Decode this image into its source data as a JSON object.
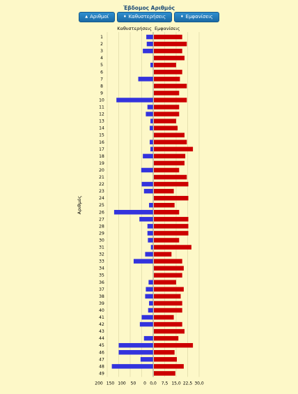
{
  "title": "Έβδομος Αριθμός",
  "buttons": [
    {
      "label": "Αριθμοί",
      "arrow": "▲"
    },
    {
      "label": "Καθυστερήσεις",
      "arrow": "♦"
    },
    {
      "label": "Εμφανίσεις",
      "arrow": "♦"
    }
  ],
  "colors": {
    "delays": "#3333dd",
    "appearances": "#cc0000",
    "background": "#fdf8c8"
  },
  "chart_data": {
    "type": "bar",
    "orientation": "horizontal",
    "ylabel": "Αριθμός",
    "categories": [
      "1",
      "2",
      "3",
      "4",
      "5",
      "6",
      "7",
      "8",
      "9",
      "10",
      "11",
      "12",
      "13",
      "14",
      "15",
      "16",
      "17",
      "18",
      "19",
      "20",
      "21",
      "22",
      "23",
      "24",
      "25",
      "26",
      "27",
      "28",
      "29",
      "30",
      "31",
      "32",
      "33",
      "34",
      "35",
      "36",
      "37",
      "38",
      "39",
      "40",
      "41",
      "42",
      "43",
      "44",
      "45",
      "46",
      "47",
      "48",
      "49"
    ],
    "series": [
      {
        "name": "Καθυστερήσεις",
        "axis_ticks": [
          "200",
          "150",
          "100",
          "50",
          "0"
        ],
        "xlim": [
          200,
          0
        ],
        "values": [
          30,
          28,
          45,
          0,
          12,
          0,
          65,
          0,
          0,
          160,
          25,
          32,
          12,
          15,
          0,
          15,
          12,
          45,
          0,
          52,
          0,
          50,
          40,
          0,
          18,
          170,
          60,
          25,
          25,
          23,
          10,
          35,
          85,
          0,
          0,
          20,
          32,
          35,
          18,
          22,
          50,
          58,
          0,
          40,
          150,
          150,
          55,
          180,
          0
        ]
      },
      {
        "name": "Εμφανίσεις",
        "axis_ticks": [
          "0,0",
          "7,5",
          "15,0",
          "22,5",
          "30,0"
        ],
        "xlim": [
          0,
          30
        ],
        "values": [
          18.5,
          21.5,
          18.5,
          20,
          14.5,
          18.5,
          17,
          21.5,
          16.5,
          21.5,
          16.5,
          16.5,
          14.5,
          15.5,
          20,
          21.5,
          25.5,
          20.5,
          20,
          16.5,
          21.5,
          22.5,
          13,
          22.5,
          13.5,
          16.5,
          22.5,
          22.5,
          22.5,
          16.5,
          24.5,
          11.5,
          18.5,
          19.5,
          18.5,
          14.5,
          19.5,
          17.5,
          18.5,
          18.5,
          13,
          18.5,
          20,
          16,
          25.5,
          13.5,
          15,
          19.5,
          14
        ]
      }
    ]
  }
}
